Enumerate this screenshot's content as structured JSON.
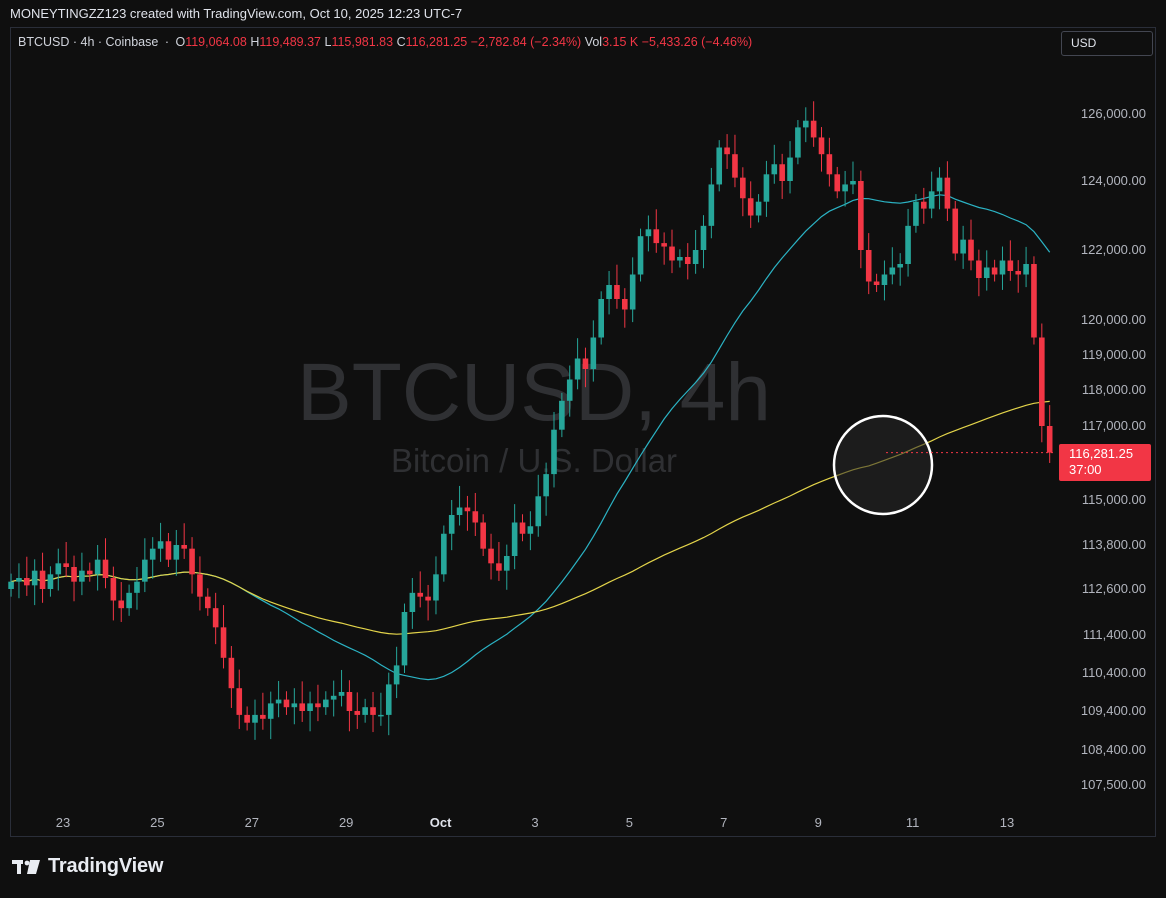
{
  "header": {
    "attribution": "MONEYTINGZZ123 created with TradingView.com, Oct 10, 2025 12:23 UTC-7"
  },
  "legend": {
    "symbol": "BTCUSD · 4h · Coinbase",
    "o_label": "O",
    "o_value": "119,064.08",
    "h_label": "H",
    "h_value": "119,489.37",
    "l_label": "L",
    "l_value": "115,981.83",
    "c_label": "C",
    "c_value": "116,281.25",
    "change": "−2,782.84 (−2.34%)",
    "vol_label": "Vol",
    "vol_value": "3.15 K",
    "vol_change": "−5,433.26 (−4.46%)"
  },
  "currency_button": "USD",
  "watermark": {
    "title": "BTCUSD, 4h",
    "subtitle": "Bitcoin / U.S. Dollar"
  },
  "price_tag": {
    "price": "116,281.25",
    "countdown": "37:00",
    "color": "#f23645"
  },
  "brand": {
    "wordmark": "TradingView"
  },
  "colors": {
    "up": "#26a69a",
    "down": "#f23645",
    "ma_fast": "#2bb3c4",
    "ma_slow": "#e3d44a",
    "highlight_circle": "#ffffff"
  },
  "chart_data": {
    "type": "candlestick",
    "interval": "4h",
    "y_ticks": [
      "126,000.00",
      "124,000.00",
      "122,000.00",
      "120,000.00",
      "119,000.00",
      "118,000.00",
      "117,000.00",
      "115,000.00",
      "113,800.00",
      "112,600.00",
      "111,400.00",
      "110,400.00",
      "109,400.00",
      "108,400.00",
      "107,500.00"
    ],
    "y_tick_values": [
      126000,
      124000,
      122000,
      120000,
      119000,
      118000,
      117000,
      115000,
      113800,
      112600,
      111400,
      110400,
      109400,
      108400,
      107500
    ],
    "x_ticks": [
      {
        "label": "23",
        "day": 23
      },
      {
        "label": "25",
        "day": 25
      },
      {
        "label": "27",
        "day": 27
      },
      {
        "label": "29",
        "day": 29
      },
      {
        "label": "Oct",
        "day": 31
      },
      {
        "label": "3",
        "day": 33
      },
      {
        "label": "5",
        "day": 35
      },
      {
        "label": "7",
        "day": 37
      },
      {
        "label": "9",
        "day": 39
      },
      {
        "label": "11",
        "day": 41
      },
      {
        "label": "13",
        "day": 43
      }
    ],
    "x_start_day": 21.9,
    "bar_days": 0.1667,
    "closes": [
      112800,
      112900,
      112700,
      113100,
      112600,
      113000,
      113300,
      113200,
      112800,
      113100,
      113000,
      113400,
      112900,
      112300,
      112100,
      112500,
      112800,
      113400,
      113700,
      113900,
      113400,
      113800,
      113700,
      113000,
      112400,
      112100,
      111600,
      110800,
      110000,
      109300,
      109100,
      109300,
      109200,
      109600,
      109700,
      109500,
      109600,
      109400,
      109600,
      109500,
      109700,
      109800,
      109900,
      109400,
      109300,
      109500,
      109300,
      109300,
      110100,
      110600,
      112000,
      112500,
      112400,
      112300,
      113000,
      114100,
      114600,
      114800,
      114700,
      114400,
      113700,
      113300,
      113100,
      113500,
      114400,
      114100,
      114300,
      115100,
      115700,
      116900,
      117700,
      118300,
      118900,
      118600,
      119500,
      120600,
      121000,
      120600,
      120300,
      121300,
      122400,
      122600,
      122200,
      122100,
      121700,
      121800,
      121600,
      122000,
      122700,
      123900,
      125000,
      124800,
      124100,
      123500,
      123000,
      123400,
      124200,
      124500,
      124000,
      124700,
      125600,
      125800,
      125300,
      124800,
      124200,
      123700,
      123900,
      124000,
      122000,
      121100,
      121000,
      121300,
      121500,
      121600,
      122700,
      123400,
      123200,
      123700,
      124100,
      123200,
      121900,
      122300,
      121700,
      121200,
      121500,
      121300,
      121700,
      121400,
      121300,
      121600,
      119500,
      117000,
      116281
    ]
  }
}
